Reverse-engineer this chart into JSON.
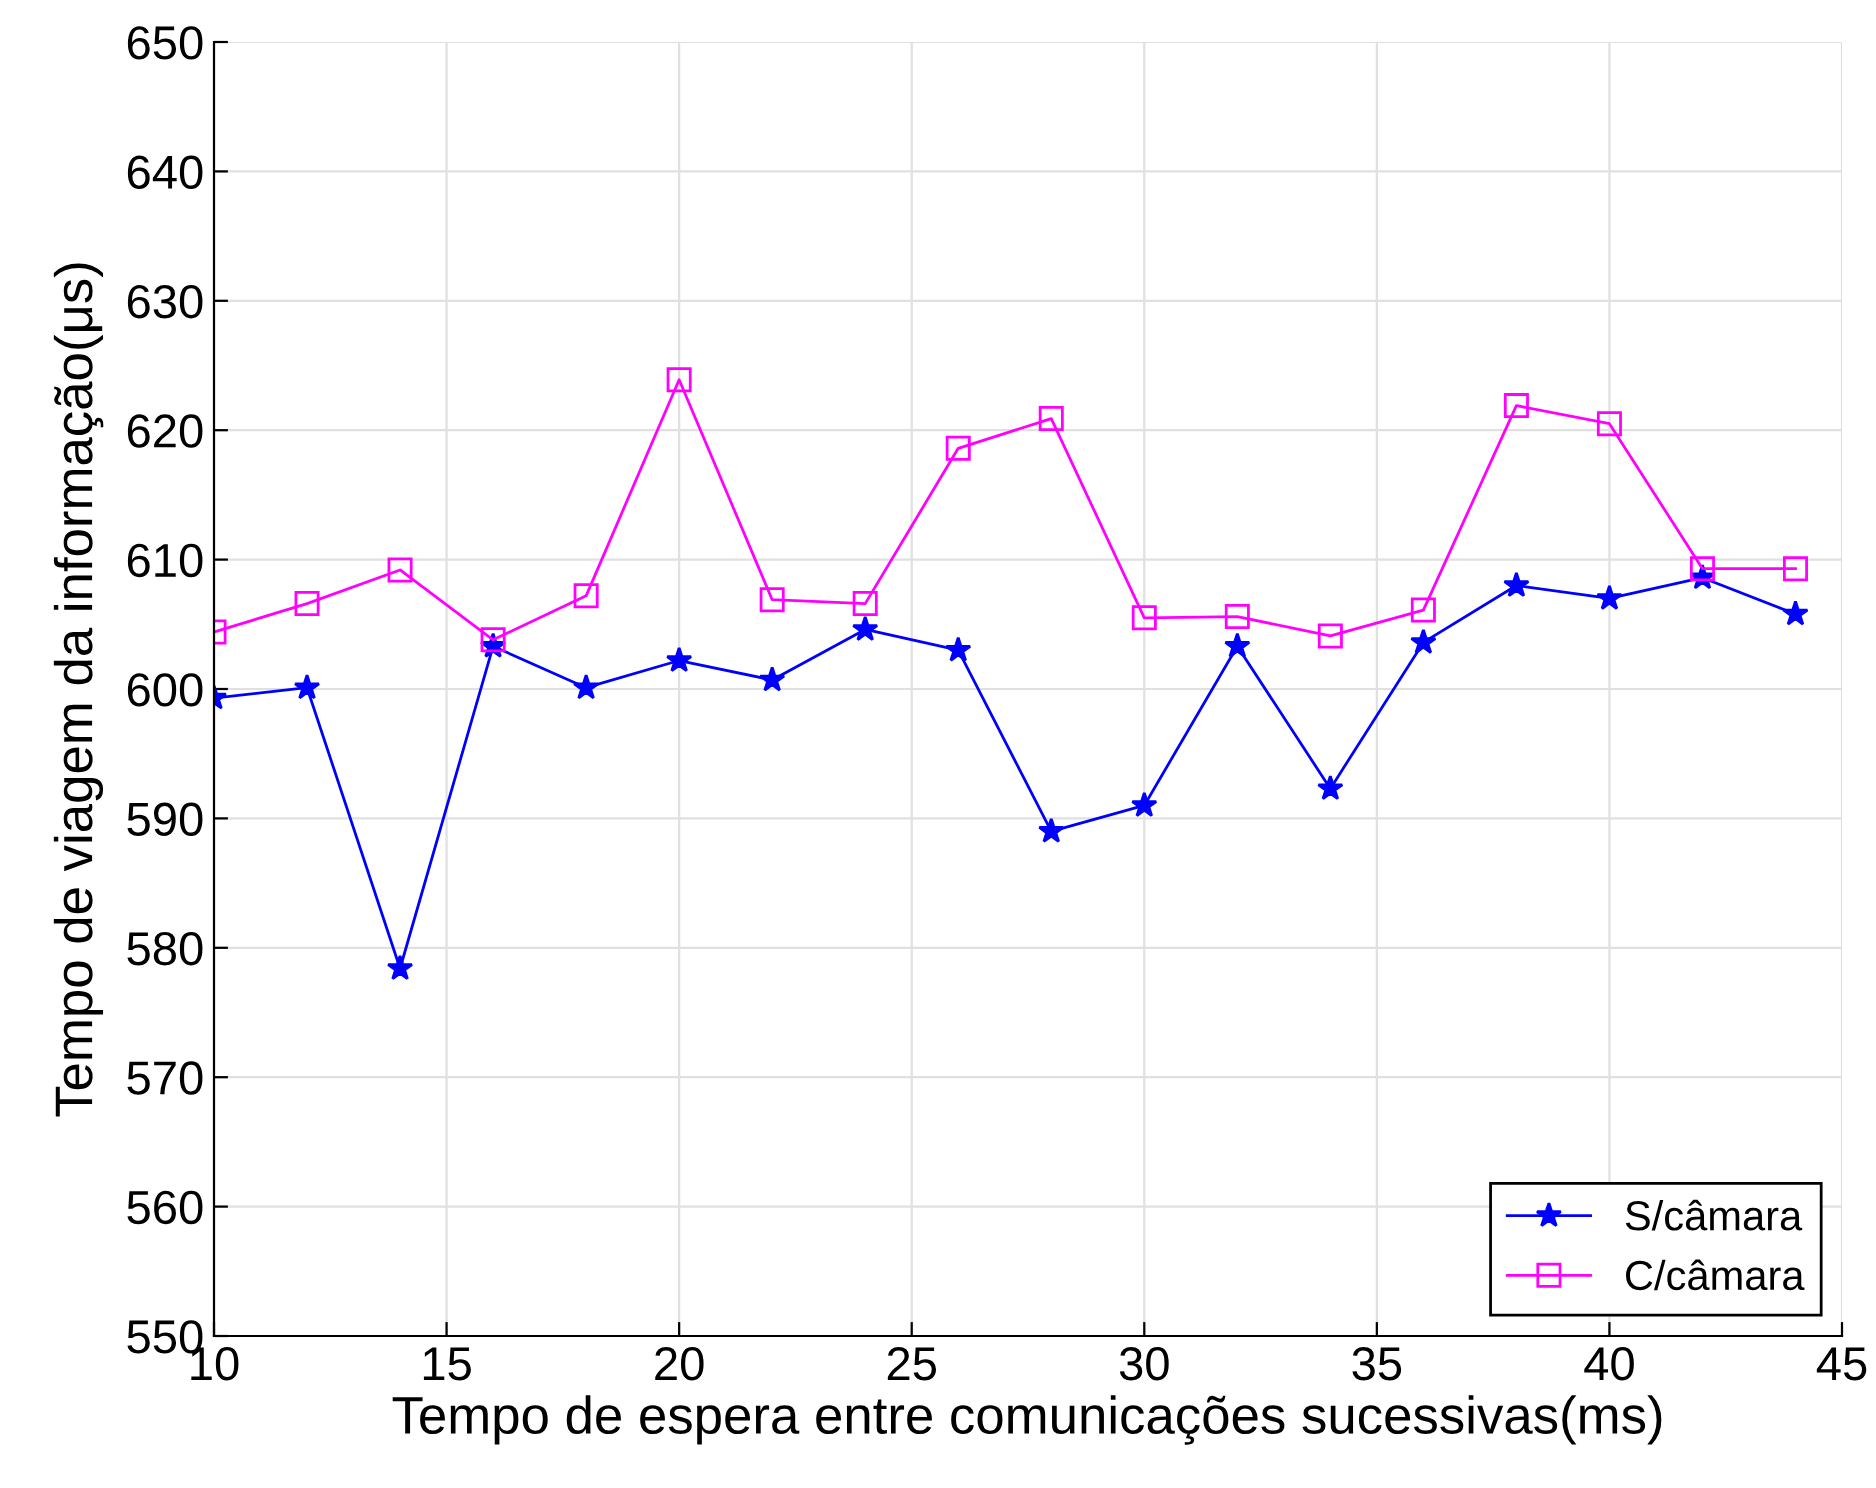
{
  "chart_data": {
    "type": "line",
    "xlabel": "Tempo de espera entre comunicações sucessivas(ms)",
    "ylabel": "Tempo de viagem da informação(μs)",
    "x": [
      10,
      12,
      14,
      16,
      18,
      20,
      22,
      24,
      26,
      28,
      30,
      32,
      34,
      36,
      38,
      40,
      42,
      44
    ],
    "series": [
      {
        "name": "S/câmara",
        "color": "#0000ff",
        "marker": "star",
        "values": [
          599.3,
          600.1,
          578.4,
          603.3,
          600.1,
          602.2,
          600.7,
          604.6,
          603.0,
          589.0,
          591.0,
          603.3,
          592.3,
          603.6,
          608.0,
          607.0,
          608.6,
          605.8
        ]
      },
      {
        "name": "C/câmara",
        "color": "#ff00ff",
        "marker": "square",
        "values": [
          604.4,
          606.6,
          609.2,
          603.8,
          607.2,
          623.9,
          606.9,
          606.6,
          618.6,
          620.9,
          605.5,
          605.6,
          604.1,
          606.1,
          621.9,
          620.5,
          609.3,
          609.3
        ]
      }
    ],
    "xlim": [
      10,
      45
    ],
    "xticks": [
      10,
      15,
      20,
      25,
      30,
      35,
      40,
      45
    ],
    "ylim": [
      550,
      650
    ],
    "yticks": [
      550,
      560,
      570,
      580,
      590,
      600,
      610,
      620,
      630,
      640,
      650
    ],
    "grid": true,
    "legend": "bottom right",
    "line_style": "solid"
  }
}
